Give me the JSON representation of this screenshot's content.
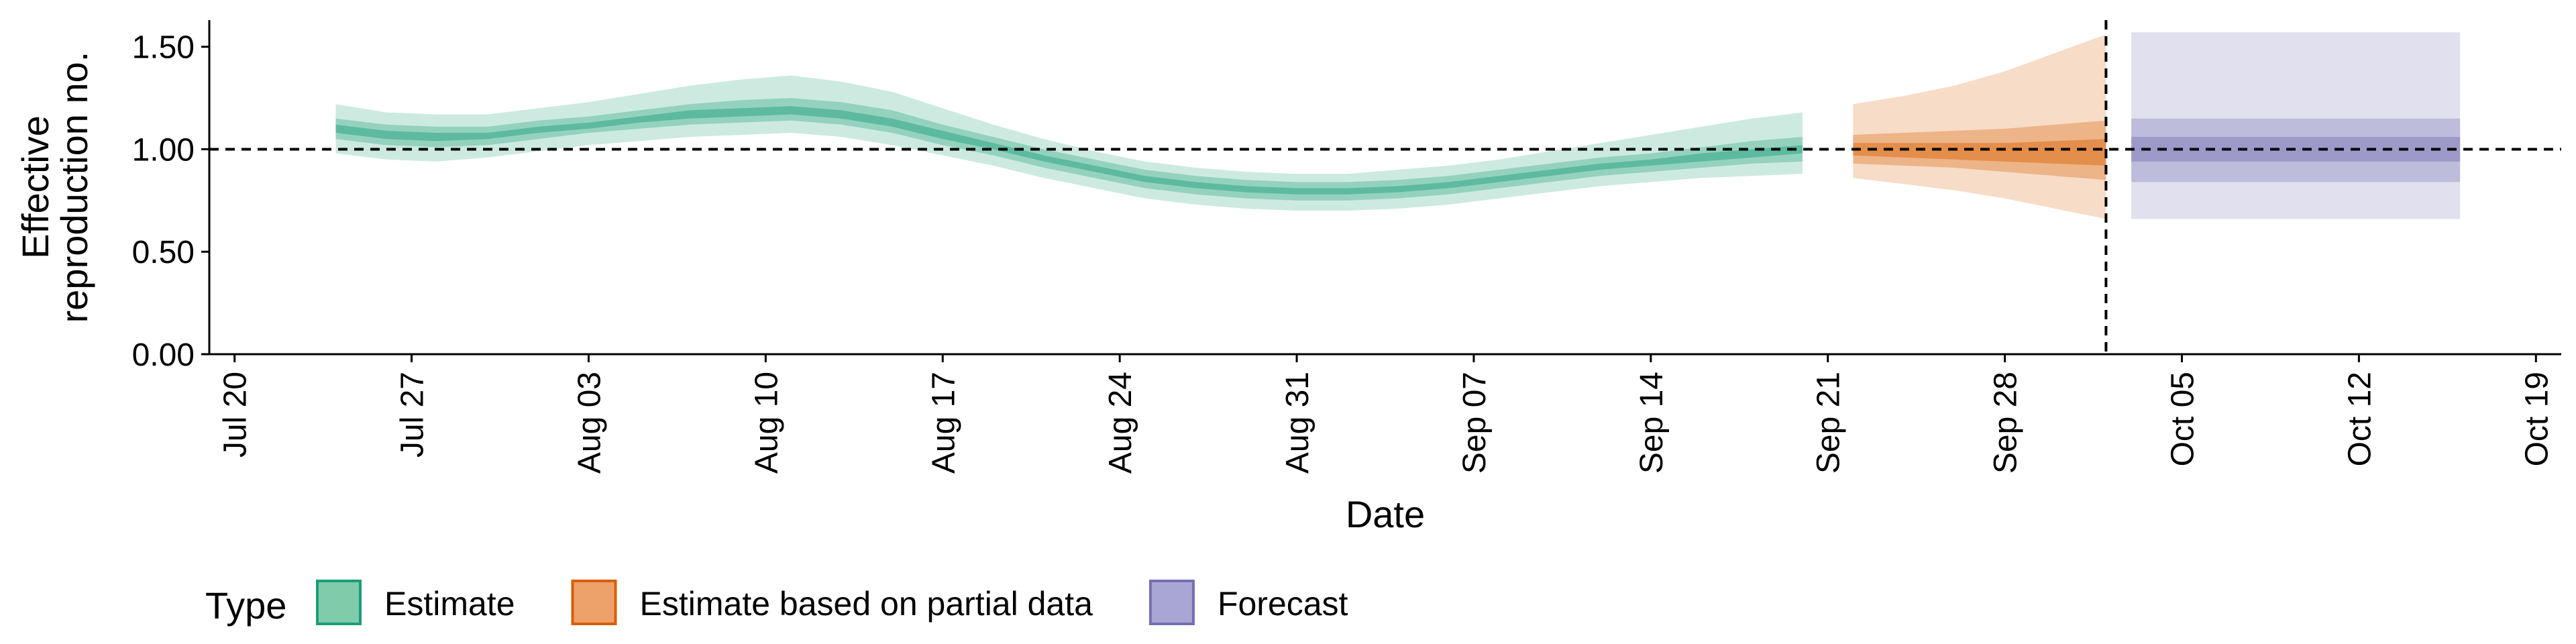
{
  "chart_data": {
    "type": "area",
    "xlabel": "Date",
    "ylabel_lines": [
      "Effective",
      "reproduction no."
    ],
    "ylim": [
      0,
      1.63
    ],
    "xlim": [
      "2020-07-19",
      "2020-10-20"
    ],
    "y_ticks": [
      {
        "value": 0.0,
        "label": "0.00"
      },
      {
        "value": 0.5,
        "label": "0.50"
      },
      {
        "value": 1.0,
        "label": "1.00"
      },
      {
        "value": 1.5,
        "label": "1.50"
      }
    ],
    "x_ticks": [
      {
        "date": "2020-07-20",
        "label": "Jul 20"
      },
      {
        "date": "2020-07-27",
        "label": "Jul 27"
      },
      {
        "date": "2020-08-03",
        "label": "Aug 03"
      },
      {
        "date": "2020-08-10",
        "label": "Aug 10"
      },
      {
        "date": "2020-08-17",
        "label": "Aug 17"
      },
      {
        "date": "2020-08-24",
        "label": "Aug 24"
      },
      {
        "date": "2020-08-31",
        "label": "Aug 31"
      },
      {
        "date": "2020-09-07",
        "label": "Sep 07"
      },
      {
        "date": "2020-09-14",
        "label": "Sep 14"
      },
      {
        "date": "2020-09-21",
        "label": "Sep 21"
      },
      {
        "date": "2020-09-28",
        "label": "Sep 28"
      },
      {
        "date": "2020-10-05",
        "label": "Oct 05"
      },
      {
        "date": "2020-10-12",
        "label": "Oct 12"
      },
      {
        "date": "2020-10-19",
        "label": "Oct 19"
      }
    ],
    "reference_line_y": 1.0,
    "vertical_line_date": "2020-10-02",
    "legend": {
      "title": "Type",
      "position": "bottom-left",
      "entries": [
        {
          "label": "Estimate",
          "fill": "#7fcbaa",
          "border": "#1b9e77"
        },
        {
          "label": "Estimate based on partial data",
          "fill": "#eda16b",
          "border": "#d95f02"
        },
        {
          "label": "Forecast",
          "fill": "#a9a6d3",
          "border": "#7570b3"
        }
      ]
    },
    "series": [
      {
        "type_label": "Estimate",
        "color": "#1b9e77",
        "points": [
          {
            "date": "2020-07-24",
            "lower90": 0.98,
            "lower50": 1.05,
            "lower20": 1.08,
            "upper20": 1.12,
            "upper50": 1.15,
            "upper90": 1.22
          },
          {
            "date": "2020-07-26",
            "lower90": 0.95,
            "lower50": 1.02,
            "lower20": 1.05,
            "upper20": 1.09,
            "upper50": 1.12,
            "upper90": 1.18
          },
          {
            "date": "2020-07-28",
            "lower90": 0.94,
            "lower50": 1.01,
            "lower20": 1.04,
            "upper20": 1.08,
            "upper50": 1.11,
            "upper90": 1.17
          },
          {
            "date": "2020-07-30",
            "lower90": 0.96,
            "lower50": 1.02,
            "lower20": 1.05,
            "upper20": 1.08,
            "upper50": 1.11,
            "upper90": 1.17
          },
          {
            "date": "2020-08-01",
            "lower90": 0.99,
            "lower50": 1.05,
            "lower20": 1.08,
            "upper20": 1.11,
            "upper50": 1.14,
            "upper90": 1.2
          },
          {
            "date": "2020-08-03",
            "lower90": 1.02,
            "lower50": 1.08,
            "lower20": 1.1,
            "upper20": 1.13,
            "upper50": 1.16,
            "upper90": 1.23
          },
          {
            "date": "2020-08-05",
            "lower90": 1.04,
            "lower50": 1.1,
            "lower20": 1.13,
            "upper20": 1.16,
            "upper50": 1.19,
            "upper90": 1.27
          },
          {
            "date": "2020-08-07",
            "lower90": 1.06,
            "lower50": 1.12,
            "lower20": 1.15,
            "upper20": 1.19,
            "upper50": 1.22,
            "upper90": 1.31
          },
          {
            "date": "2020-08-09",
            "lower90": 1.07,
            "lower50": 1.13,
            "lower20": 1.16,
            "upper20": 1.2,
            "upper50": 1.24,
            "upper90": 1.34
          },
          {
            "date": "2020-08-11",
            "lower90": 1.08,
            "lower50": 1.14,
            "lower20": 1.17,
            "upper20": 1.21,
            "upper50": 1.25,
            "upper90": 1.36
          },
          {
            "date": "2020-08-13",
            "lower90": 1.06,
            "lower50": 1.12,
            "lower20": 1.15,
            "upper20": 1.19,
            "upper50": 1.23,
            "upper90": 1.33
          },
          {
            "date": "2020-08-15",
            "lower90": 1.02,
            "lower50": 1.08,
            "lower20": 1.11,
            "upper20": 1.15,
            "upper50": 1.19,
            "upper90": 1.28
          },
          {
            "date": "2020-08-17",
            "lower90": 0.97,
            "lower50": 1.02,
            "lower20": 1.05,
            "upper20": 1.09,
            "upper50": 1.12,
            "upper90": 1.2
          },
          {
            "date": "2020-08-19",
            "lower90": 0.92,
            "lower50": 0.97,
            "lower20": 1.0,
            "upper20": 1.03,
            "upper50": 1.06,
            "upper90": 1.12
          },
          {
            "date": "2020-08-21",
            "lower90": 0.86,
            "lower50": 0.91,
            "lower20": 0.94,
            "upper20": 0.97,
            "upper50": 1.0,
            "upper90": 1.05
          },
          {
            "date": "2020-08-23",
            "lower90": 0.81,
            "lower50": 0.86,
            "lower20": 0.89,
            "upper20": 0.92,
            "upper50": 0.95,
            "upper90": 0.99
          },
          {
            "date": "2020-08-25",
            "lower90": 0.76,
            "lower50": 0.81,
            "lower20": 0.84,
            "upper20": 0.87,
            "upper50": 0.9,
            "upper90": 0.94
          },
          {
            "date": "2020-08-27",
            "lower90": 0.73,
            "lower50": 0.78,
            "lower20": 0.81,
            "upper20": 0.84,
            "upper50": 0.87,
            "upper90": 0.91
          },
          {
            "date": "2020-08-29",
            "lower90": 0.71,
            "lower50": 0.76,
            "lower20": 0.79,
            "upper20": 0.82,
            "upper50": 0.85,
            "upper90": 0.89
          },
          {
            "date": "2020-08-31",
            "lower90": 0.7,
            "lower50": 0.75,
            "lower20": 0.78,
            "upper20": 0.81,
            "upper50": 0.84,
            "upper90": 0.88
          },
          {
            "date": "2020-09-02",
            "lower90": 0.7,
            "lower50": 0.75,
            "lower20": 0.78,
            "upper20": 0.81,
            "upper50": 0.84,
            "upper90": 0.88
          },
          {
            "date": "2020-09-04",
            "lower90": 0.71,
            "lower50": 0.76,
            "lower20": 0.79,
            "upper20": 0.82,
            "upper50": 0.85,
            "upper90": 0.9
          },
          {
            "date": "2020-09-06",
            "lower90": 0.73,
            "lower50": 0.78,
            "lower20": 0.81,
            "upper20": 0.84,
            "upper50": 0.87,
            "upper90": 0.92
          },
          {
            "date": "2020-09-08",
            "lower90": 0.76,
            "lower50": 0.81,
            "lower20": 0.84,
            "upper20": 0.87,
            "upper50": 0.9,
            "upper90": 0.95
          },
          {
            "date": "2020-09-10",
            "lower90": 0.79,
            "lower50": 0.84,
            "lower20": 0.87,
            "upper20": 0.9,
            "upper50": 0.93,
            "upper90": 0.99
          },
          {
            "date": "2020-09-12",
            "lower90": 0.82,
            "lower50": 0.87,
            "lower20": 0.9,
            "upper20": 0.93,
            "upper50": 0.96,
            "upper90": 1.03
          },
          {
            "date": "2020-09-14",
            "lower90": 0.84,
            "lower50": 0.89,
            "lower20": 0.92,
            "upper20": 0.95,
            "upper50": 0.98,
            "upper90": 1.07
          },
          {
            "date": "2020-09-16",
            "lower90": 0.86,
            "lower50": 0.91,
            "lower20": 0.94,
            "upper20": 0.98,
            "upper50": 1.01,
            "upper90": 1.11
          },
          {
            "date": "2020-09-18",
            "lower90": 0.87,
            "lower50": 0.93,
            "lower20": 0.96,
            "upper20": 1.0,
            "upper50": 1.04,
            "upper90": 1.15
          },
          {
            "date": "2020-09-20",
            "lower90": 0.88,
            "lower50": 0.94,
            "lower20": 0.98,
            "upper20": 1.02,
            "upper50": 1.06,
            "upper90": 1.18
          }
        ]
      },
      {
        "type_label": "Estimate based on partial data",
        "color": "#d95f02",
        "points": [
          {
            "date": "2020-09-22",
            "lower90": 0.86,
            "lower50": 0.93,
            "lower20": 0.97,
            "upper20": 1.03,
            "upper50": 1.07,
            "upper90": 1.22
          },
          {
            "date": "2020-09-24",
            "lower90": 0.83,
            "lower50": 0.92,
            "lower20": 0.96,
            "upper20": 1.03,
            "upper50": 1.08,
            "upper90": 1.26
          },
          {
            "date": "2020-09-26",
            "lower90": 0.8,
            "lower50": 0.91,
            "lower20": 0.95,
            "upper20": 1.03,
            "upper50": 1.09,
            "upper90": 1.31
          },
          {
            "date": "2020-09-28",
            "lower90": 0.76,
            "lower50": 0.89,
            "lower20": 0.94,
            "upper20": 1.03,
            "upper50": 1.1,
            "upper90": 1.38
          },
          {
            "date": "2020-09-30",
            "lower90": 0.71,
            "lower50": 0.87,
            "lower20": 0.93,
            "upper20": 1.04,
            "upper50": 1.12,
            "upper90": 1.47
          },
          {
            "date": "2020-10-02",
            "lower90": 0.66,
            "lower50": 0.85,
            "lower20": 0.92,
            "upper20": 1.05,
            "upper50": 1.14,
            "upper90": 1.56
          }
        ]
      },
      {
        "type_label": "Forecast",
        "color": "#7570b3",
        "points": [
          {
            "date": "2020-10-03",
            "lower90": 0.66,
            "lower50": 0.84,
            "lower20": 0.94,
            "upper20": 1.06,
            "upper50": 1.15,
            "upper90": 1.57
          },
          {
            "date": "2020-10-16",
            "lower90": 0.66,
            "lower50": 0.84,
            "lower20": 0.94,
            "upper20": 1.06,
            "upper50": 1.15,
            "upper90": 1.57
          }
        ]
      }
    ]
  }
}
